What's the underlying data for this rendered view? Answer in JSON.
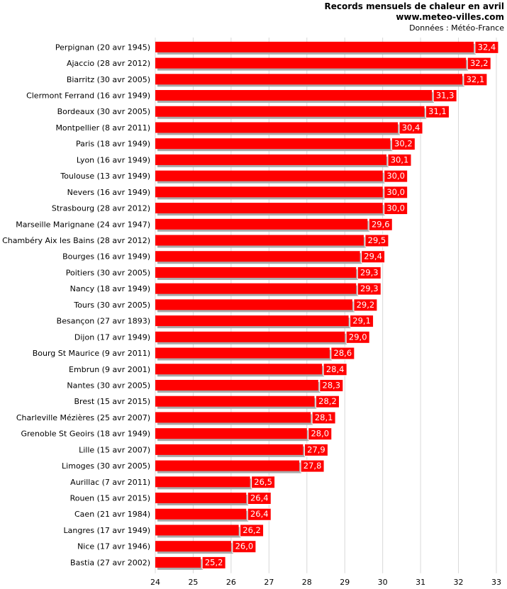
{
  "header": {
    "title": "Records mensuels de chaleur en avril",
    "site": "www.meteo-villes.com",
    "source": "Données : Météo-France"
  },
  "colors": {
    "bar": "#ff0000",
    "bar_shadow": "#aaaaaa",
    "label_bg": "#ff0000",
    "label_text": "#ffffff",
    "grid": "#d8d8d8"
  },
  "chart_data": {
    "type": "bar",
    "orientation": "horizontal",
    "title": "Records mensuels de chaleur en avril",
    "xlabel": "",
    "ylabel": "",
    "xlim": [
      24,
      33
    ],
    "xticks": [
      "24",
      "25",
      "26",
      "27",
      "28",
      "29",
      "30",
      "31",
      "32",
      "33"
    ],
    "grid": true,
    "categories": [
      "Perpignan (20 avr 1945)",
      "Ajaccio (28 avr 2012)",
      "Biarritz (30 avr 2005)",
      "Clermont Ferrand (16 avr 1949)",
      "Bordeaux (30 avr 2005)",
      "Montpellier (8 avr 2011)",
      "Paris (18 avr 1949)",
      "Lyon (16 avr 1949)",
      "Toulouse (13 avr 1949)",
      "Nevers (16 avr 1949)",
      "Strasbourg (28 avr 2012)",
      "Marseille Marignane (24 avr 1947)",
      "Chambéry Aix les Bains (28 avr 2012)",
      "Bourges (16 avr 1949)",
      "Poitiers (30 avr 2005)",
      "Nancy (18 avr 1949)",
      "Tours (30 avr 2005)",
      "Besançon (27 avr 1893)",
      "Dijon (17 avr 1949)",
      "Bourg St Maurice (9 avr 2011)",
      "Embrun (9 avr 2001)",
      "Nantes (30 avr 2005)",
      "Brest (15 avr 2015)",
      "Charleville Mézières (25 avr 2007)",
      "Grenoble St Geoirs (18 avr 1949)",
      "Lille (15 avr 2007)",
      "Limoges (30 avr 2005)",
      "Aurillac (7 avr 2011)",
      "Rouen (15 avr 2015)",
      "Caen (21 avr 1984)",
      "Langres (17 avr 1949)",
      "Nice (17 avr 1946)",
      "Bastia (27 avr 2002)"
    ],
    "values": [
      32.4,
      32.2,
      32.1,
      31.3,
      31.1,
      30.4,
      30.2,
      30.1,
      30.0,
      30.0,
      30.0,
      29.6,
      29.5,
      29.4,
      29.3,
      29.3,
      29.2,
      29.1,
      29.0,
      28.6,
      28.4,
      28.3,
      28.2,
      28.1,
      28.0,
      27.9,
      27.8,
      26.5,
      26.4,
      26.4,
      26.2,
      26.0,
      25.2
    ],
    "value_labels": [
      "32,4",
      "32,2",
      "32,1",
      "31,3",
      "31,1",
      "30,4",
      "30,2",
      "30,1",
      "30,0",
      "30,0",
      "30,0",
      "29,6",
      "29,5",
      "29,4",
      "29,3",
      "29,3",
      "29,2",
      "29,1",
      "29,0",
      "28,6",
      "28,4",
      "28,3",
      "28,2",
      "28,1",
      "28,0",
      "27,9",
      "27,8",
      "26,5",
      "26,4",
      "26,4",
      "26,2",
      "26,0",
      "25,2"
    ]
  }
}
